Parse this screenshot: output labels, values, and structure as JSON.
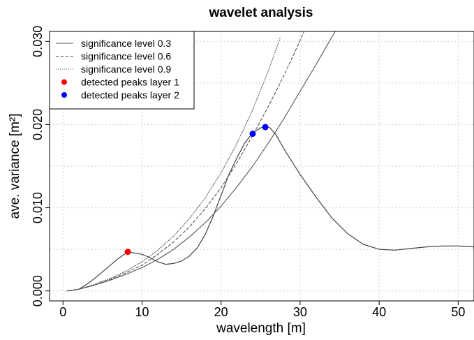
{
  "chart_data": {
    "type": "line",
    "title": "wavelet analysis",
    "xlabel": "wavelength [m]",
    "ylabel": "ave. variance [m²]",
    "xlim": [
      -1.7,
      52
    ],
    "ylim": [
      -0.0012,
      0.0312
    ],
    "xticks": [
      0,
      10,
      20,
      30,
      40,
      50
    ],
    "xtick_labels": [
      "0",
      "10",
      "20",
      "30",
      "40",
      "50"
    ],
    "yticks": [
      0,
      0.01,
      0.02,
      0.03
    ],
    "ytick_labels": [
      "0.000",
      "0.010",
      "0.020",
      "0.030"
    ],
    "ygrid": [
      0,
      0.005,
      0.01,
      0.015,
      0.02,
      0.025,
      0.03
    ],
    "grid": true,
    "legend_position": "top-left",
    "legend": [
      {
        "label": "significance level 0.3",
        "kind": "line",
        "dash": "solid",
        "color": "#555555"
      },
      {
        "label": "significance level 0.6",
        "kind": "line",
        "dash": "dashed",
        "color": "#555555"
      },
      {
        "label": "significance level 0.9",
        "kind": "line",
        "dash": "dotted",
        "color": "#555555"
      },
      {
        "label": "detected peaks layer 1",
        "kind": "point",
        "color": "#ff0000"
      },
      {
        "label": "detected peaks layer 2",
        "kind": "point",
        "color": "#0000ff"
      }
    ],
    "series": [
      {
        "dash": "solid",
        "color": "#444444",
        "x": [
          0.5,
          2,
          3,
          4,
          5,
          6,
          7,
          8.2,
          10,
          11,
          12,
          13,
          14,
          15,
          16,
          17,
          18,
          19,
          20,
          21,
          22,
          23,
          24,
          25,
          25.6,
          26.2,
          27,
          28,
          30,
          32,
          34,
          36,
          38,
          40,
          42,
          44,
          46,
          48,
          50,
          52
        ],
        "y": [
          0.0,
          0.0002,
          0.0008,
          0.0015,
          0.0023,
          0.0031,
          0.0039,
          0.0047,
          0.0044,
          0.004,
          0.0035,
          0.0032,
          0.0033,
          0.0036,
          0.0042,
          0.0052,
          0.0068,
          0.009,
          0.0115,
          0.014,
          0.016,
          0.0178,
          0.019,
          0.0196,
          0.0198,
          0.0196,
          0.0187,
          0.017,
          0.014,
          0.0113,
          0.0088,
          0.0069,
          0.0056,
          0.005,
          0.0049,
          0.0051,
          0.0053,
          0.0054,
          0.0054,
          0.0053
        ]
      },
      {
        "name": "significance level 0.3",
        "dash": "solid",
        "color": "#555555",
        "x": [
          0.5,
          2,
          4,
          6,
          8,
          10,
          12,
          14,
          16,
          18,
          20,
          22,
          24,
          26,
          28,
          30,
          32,
          34,
          34.5
        ],
        "y": [
          0.0,
          0.0002,
          0.0007,
          0.0013,
          0.002,
          0.0028,
          0.0038,
          0.005,
          0.0065,
          0.0082,
          0.0102,
          0.0125,
          0.015,
          0.0178,
          0.0208,
          0.024,
          0.0272,
          0.0305,
          0.0313
        ]
      },
      {
        "name": "significance level 0.6",
        "dash": "dashed",
        "color": "#555555",
        "x": [
          0.5,
          2,
          4,
          6,
          8,
          10,
          12,
          14,
          16,
          18,
          20,
          22,
          24,
          26,
          28,
          30,
          30.5
        ],
        "y": [
          0.0,
          0.0002,
          0.0007,
          0.0014,
          0.0022,
          0.0031,
          0.0044,
          0.0059,
          0.0077,
          0.0099,
          0.0124,
          0.0154,
          0.0187,
          0.0222,
          0.026,
          0.0301,
          0.0312
        ]
      },
      {
        "name": "significance level 0.9",
        "dash": "dotted",
        "color": "#555555",
        "x": [
          0.5,
          2,
          4,
          6,
          8,
          10,
          12,
          14,
          16,
          18,
          20,
          22,
          24,
          26,
          27.5
        ],
        "y": [
          0.0,
          0.0002,
          0.0008,
          0.0015,
          0.0024,
          0.0035,
          0.0049,
          0.0066,
          0.0087,
          0.0112,
          0.0142,
          0.0177,
          0.0218,
          0.0265,
          0.0305
        ]
      }
    ],
    "points": [
      {
        "series": "detected peaks layer 1",
        "color": "#ff0000",
        "x": 8.2,
        "y": 0.0047
      },
      {
        "series": "detected peaks layer 2",
        "color": "#0000ff",
        "x": 24.0,
        "y": 0.0189
      },
      {
        "series": "detected peaks layer 2",
        "color": "#0000ff",
        "x": 25.6,
        "y": 0.0197
      }
    ]
  }
}
